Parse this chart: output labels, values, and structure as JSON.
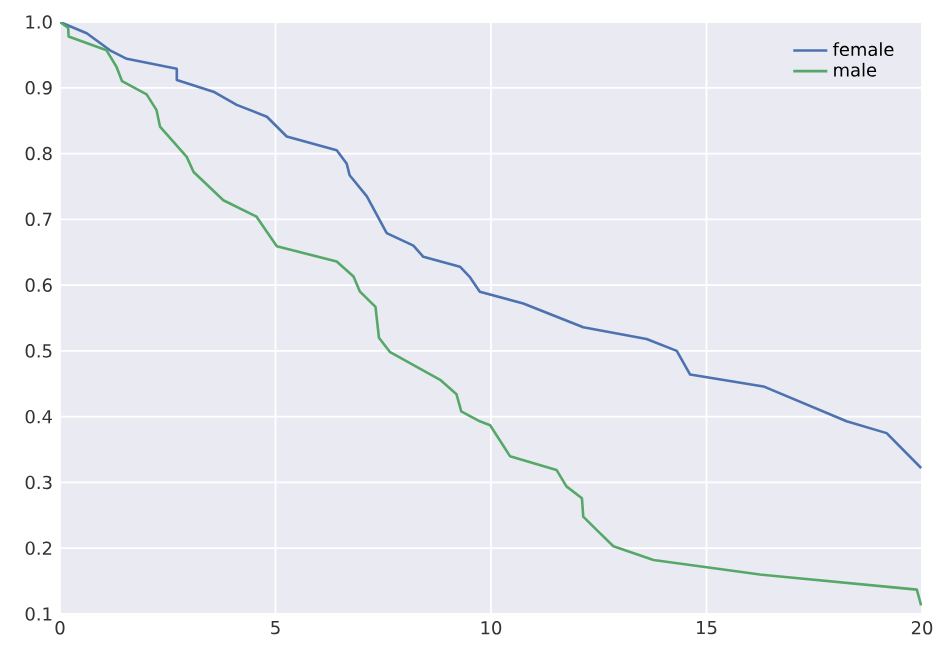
{
  "chart_data": {
    "type": "line",
    "xlim": [
      0,
      20
    ],
    "ylim": [
      0.1,
      1.0
    ],
    "xticks": [
      0,
      5,
      10,
      15,
      20
    ],
    "yticks": [
      0.1,
      0.2,
      0.3,
      0.4,
      0.5,
      0.6,
      0.7,
      0.8,
      0.9,
      {
        "value": 1.0,
        "label": "1.0"
      }
    ],
    "grid": true,
    "legend": "top right",
    "marker": "none",
    "line_style": "solid",
    "series": [
      {
        "name": "female",
        "color": "#4c72b0",
        "x": [
          0,
          0.62,
          1.16,
          1.55,
          2.71,
          2.71,
          3.56,
          4.1,
          4.8,
          5.26,
          6.42,
          6.65,
          6.72,
          7.12,
          7.58,
          8.2,
          8.43,
          9.28,
          9.5,
          9.74,
          10.75,
          12.14,
          13.61,
          14.31,
          14.62,
          16.32,
          18.25,
          19.18,
          19.98
        ],
        "values": [
          1.0,
          0.983,
          0.957,
          0.944,
          0.929,
          0.912,
          0.894,
          0.874,
          0.856,
          0.826,
          0.805,
          0.785,
          0.767,
          0.735,
          0.679,
          0.66,
          0.643,
          0.628,
          0.613,
          0.59,
          0.572,
          0.536,
          0.518,
          0.5,
          0.464,
          0.446,
          0.393,
          0.375,
          0.322
        ]
      },
      {
        "name": "male",
        "color": "#55a868",
        "x": [
          0,
          0.19,
          0.2,
          1.08,
          1.31,
          1.44,
          2.01,
          2.24,
          2.32,
          2.94,
          3.1,
          3.79,
          4.56,
          5.03,
          6.42,
          6.81,
          6.96,
          7.32,
          7.4,
          7.66,
          8.82,
          9.2,
          9.31,
          9.74,
          9.98,
          10.44,
          11.52,
          11.75,
          12.11,
          12.14,
          12.45,
          12.84,
          13.77,
          16.24,
          19.88,
          19.98
        ],
        "values": [
          1.0,
          0.991,
          0.978,
          0.957,
          0.932,
          0.91,
          0.89,
          0.866,
          0.841,
          0.795,
          0.772,
          0.729,
          0.704,
          0.659,
          0.636,
          0.613,
          0.59,
          0.567,
          0.52,
          0.498,
          0.456,
          0.434,
          0.408,
          0.393,
          0.387,
          0.34,
          0.319,
          0.294,
          0.276,
          0.248,
          0.228,
          0.203,
          0.182,
          0.16,
          0.137,
          0.113
        ]
      }
    ]
  }
}
